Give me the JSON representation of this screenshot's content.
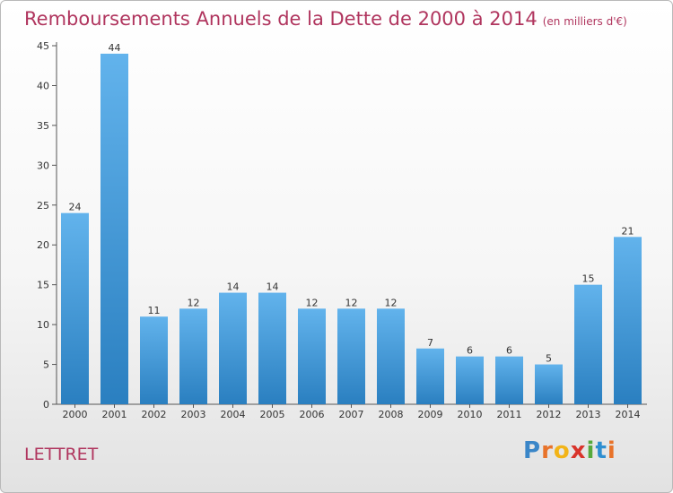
{
  "header": {
    "title": "Remboursements Annuels de la Dette de 2000 à 2014",
    "unit": "(en milliers d'€)"
  },
  "footer": {
    "place": "LETTRET",
    "logo": [
      "P",
      "r",
      "o",
      "x",
      "i",
      "t",
      "i"
    ],
    "logo_colors": [
      "#3a86c8",
      "#e8732a",
      "#f2b418",
      "#d9342b",
      "#56a93c",
      "#2f8fd1",
      "#e8732a"
    ]
  },
  "colors": {
    "bar_top": "#62b3ec",
    "bar_bottom": "#2a7fc0",
    "title": "#b0355e"
  },
  "chart_data": {
    "type": "bar",
    "categories": [
      "2000",
      "2001",
      "2002",
      "2003",
      "2004",
      "2005",
      "2006",
      "2007",
      "2008",
      "2009",
      "2010",
      "2011",
      "2012",
      "2013",
      "2014"
    ],
    "values": [
      24,
      44,
      11,
      12,
      14,
      14,
      12,
      12,
      12,
      7,
      6,
      6,
      5,
      15,
      21
    ],
    "yticks": [
      0,
      5,
      10,
      15,
      20,
      25,
      30,
      35,
      40,
      45
    ],
    "ylim": [
      0,
      45
    ],
    "grid": false,
    "title": "Remboursements Annuels de la Dette de 2000 à 2014",
    "xlabel": "",
    "ylabel": ""
  }
}
